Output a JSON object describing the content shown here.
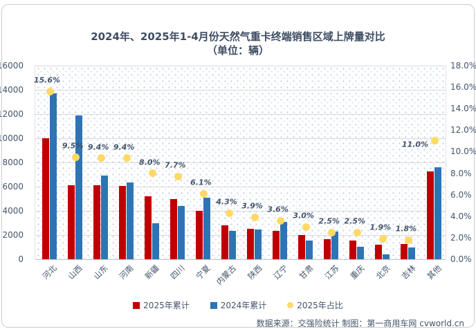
{
  "title_line1": "2024年、2025年1-4月份天然气重卡终端销售区域上牌量对比",
  "title_line2": "（单位：辆）",
  "chart_data": {
    "type": "bar",
    "categories": [
      "河北",
      "山西",
      "山东",
      "河南",
      "新疆",
      "四川",
      "宁夏",
      "内蒙古",
      "陕西",
      "辽宁",
      "甘肃",
      "江苏",
      "重庆",
      "北京",
      "吉林",
      "其他"
    ],
    "series": [
      {
        "name": "2025年累计",
        "color": "#C00000",
        "values": [
          10000,
          6100,
          6100,
          6050,
          5200,
          5000,
          4000,
          2800,
          2500,
          2350,
          2000,
          1650,
          1550,
          1200,
          1250,
          7250
        ]
      },
      {
        "name": "2024年累计",
        "color": "#2E74B5",
        "values": [
          13700,
          11900,
          6900,
          6350,
          3000,
          4400,
          5100,
          2350,
          2450,
          3100,
          1550,
          2300,
          1050,
          400,
          950,
          7600
        ]
      }
    ],
    "pct_series": {
      "name": "2025年占比",
      "color": "#FFD966",
      "values": [
        15.6,
        9.5,
        9.4,
        9.4,
        8.0,
        7.7,
        6.1,
        4.3,
        3.9,
        3.6,
        3.0,
        2.5,
        2.5,
        1.9,
        1.8,
        11.0
      ],
      "labels": [
        "15.6%",
        "9.5%",
        "9.4%",
        "9.4%",
        "8.0%",
        "7.7%",
        "6.1%",
        "4.3%",
        "3.9%",
        "3.6%",
        "3.0%",
        "2.5%",
        "2.5%",
        "1.9%",
        "1.8%",
        "11.0%"
      ]
    },
    "left_axis": {
      "min": 0,
      "max": 16000,
      "step": 2000,
      "ticks": [
        "16000",
        "14000",
        "12000",
        "10000",
        "8000",
        "6000",
        "4000",
        "2000",
        "0"
      ]
    },
    "right_axis": {
      "min": 0,
      "max": 18,
      "step": 2,
      "ticks": [
        "18.0%",
        "16.0%",
        "14.0%",
        "12.0%",
        "10.0%",
        "8.0%",
        "6.0%",
        "4.0%",
        "2.0%",
        "0.0%"
      ]
    },
    "grid": true,
    "legend_position": "bottom"
  },
  "legend": [
    {
      "label": "2025年累计",
      "color": "#C00000",
      "shape": "square"
    },
    {
      "label": "2024年累计",
      "color": "#2E74B5",
      "shape": "square"
    },
    {
      "label": "2025年占比",
      "color": "#FFD966",
      "shape": "circle"
    }
  ],
  "footer": "数据来源：交强险统计 制图：第一商用车网 cvworld.cn"
}
